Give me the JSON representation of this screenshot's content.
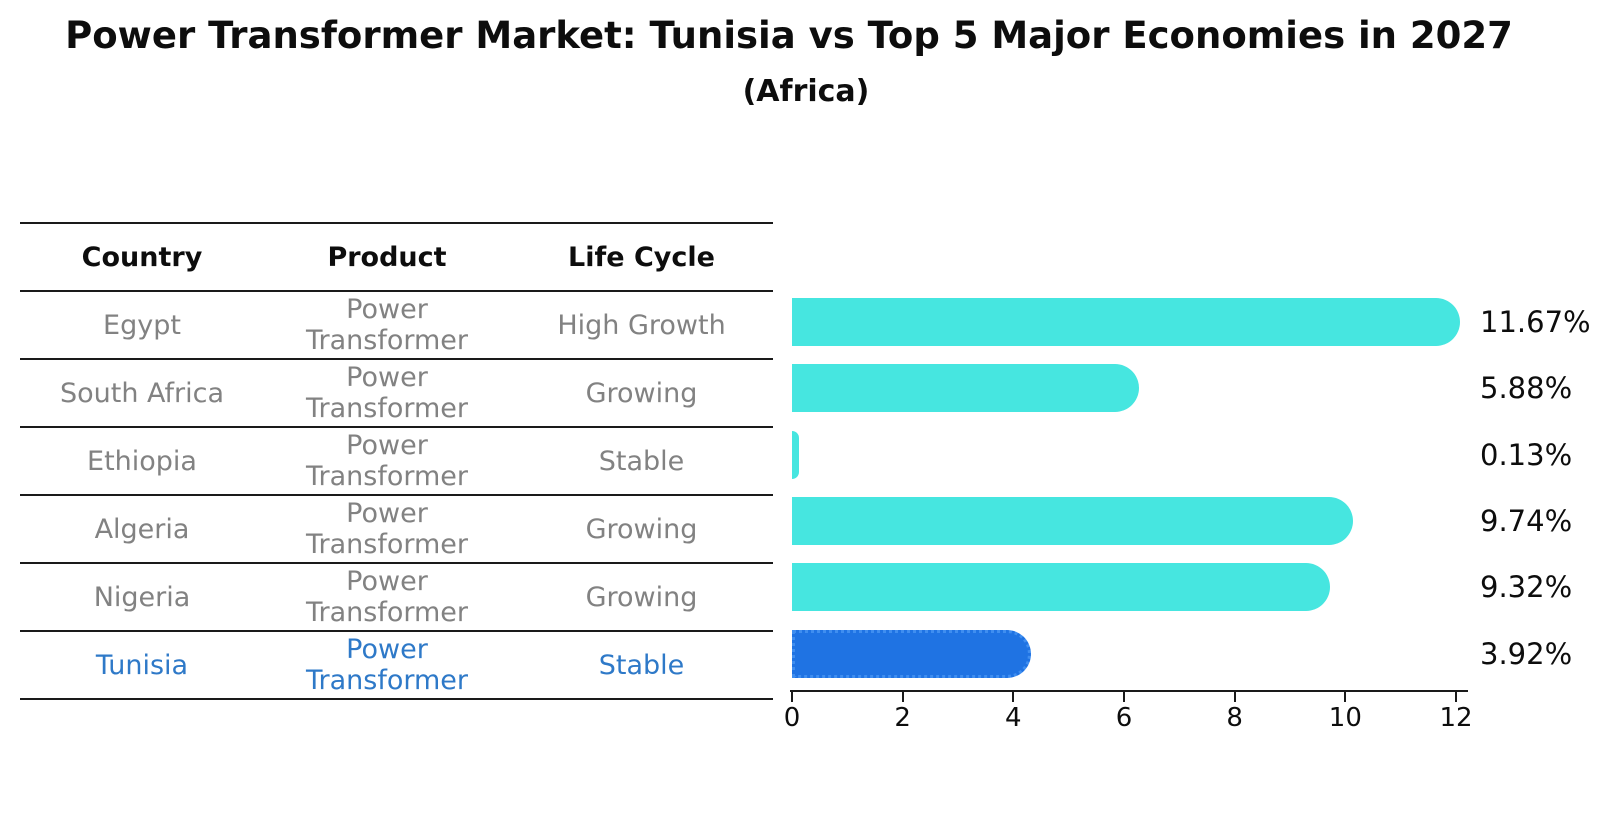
{
  "title": "Power Transformer Market: Tunisia vs Top 5 Major Economies in 2027",
  "subtitle": "(Africa)",
  "table": {
    "headers": [
      "Country",
      "Product",
      "Life Cycle"
    ],
    "rows": [
      {
        "country": "Egypt",
        "product": "Power Transformer",
        "life_cycle": "High Growth",
        "highlight": false
      },
      {
        "country": "South Africa",
        "product": "Power Transformer",
        "life_cycle": "Growing",
        "highlight": false
      },
      {
        "country": "Ethiopia",
        "product": "Power Transformer",
        "life_cycle": "Stable",
        "highlight": false
      },
      {
        "country": "Algeria",
        "product": "Power Transformer",
        "life_cycle": "Growing",
        "highlight": false
      },
      {
        "country": "Nigeria",
        "product": "Power Transformer",
        "life_cycle": "Growing",
        "highlight": false
      },
      {
        "country": "Tunisia",
        "product": "Power Transformer",
        "life_cycle": "Stable",
        "highlight": true
      }
    ]
  },
  "chart_data": {
    "type": "bar",
    "orientation": "horizontal",
    "title": "Power Transformer Market: Tunisia vs Top 5 Major Economies in 2027",
    "subtitle": "(Africa)",
    "categories": [
      "Egypt",
      "South Africa",
      "Ethiopia",
      "Algeria",
      "Nigeria",
      "Tunisia"
    ],
    "values": [
      11.67,
      5.88,
      0.13,
      9.74,
      9.32,
      3.92
    ],
    "value_labels": [
      "11.67%",
      "5.88%",
      "0.13%",
      "9.74%",
      "9.32%",
      "3.92%"
    ],
    "unit": "%",
    "x_ticks": [
      0,
      2,
      4,
      6,
      8,
      10,
      12
    ],
    "xlim": [
      0,
      12.3
    ],
    "grid": false,
    "legend": "none",
    "bar_color": "#46e6e0",
    "highlight_index": 5,
    "highlight_color": "#1f73e3"
  },
  "colors": {
    "line": "#1a1a1a",
    "table_text": "#828282",
    "highlight_text": "#2e79c8",
    "bar": "#46e6e0",
    "highlight_bar": "#1f73e3",
    "label_text": "#0d0d0d"
  }
}
